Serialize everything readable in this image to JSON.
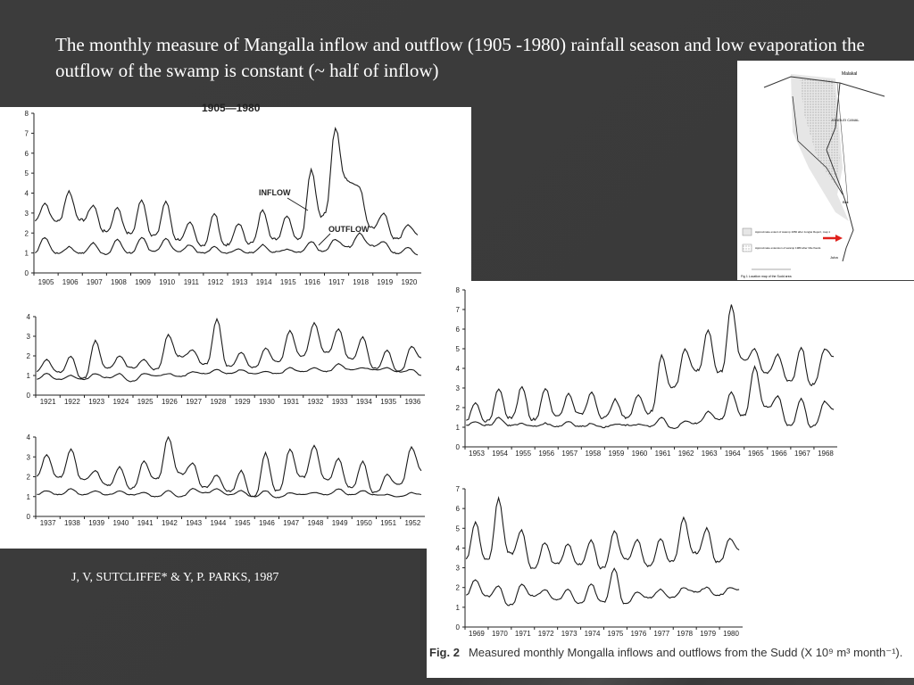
{
  "slide": {
    "title": "The monthly measure of Mangalla inflow and outflow (1905 -1980) rainfall season and low evaporation the outflow of the swamp is constant (~ half of inflow)",
    "credit": "J, V, SUTCLIFFE* & Y, P. PARKS, 1987",
    "caption_fig": "Fig. 2",
    "caption_text": "Measured monthly Mongalla inflows and outflows from the Sudd (X 10⁹ m³ month⁻¹).",
    "top_partial_label": "1905—1980"
  },
  "map": {
    "labels": [
      "Malakal",
      "JONGLEI CANAL",
      "Bor",
      "Juba",
      "Fig 1 Location map of the Sudd area"
    ],
    "legend": [
      "Approximate extent of swamp 1950 after Jonglei Report, map 1",
      "Approximate extension of swamp 1980 after Nile floods"
    ],
    "arrow_color": "#e0201b"
  },
  "chart_data": [
    {
      "type": "line",
      "years": [
        "1905",
        "1906",
        "1907",
        "1908",
        "1909",
        "1910",
        "1911",
        "1912",
        "1913",
        "1914",
        "1915",
        "1916",
        "1917",
        "1918",
        "1919",
        "1920"
      ],
      "ylim": [
        0,
        8
      ],
      "yticks": [
        "0",
        "1",
        "2",
        "3",
        "4",
        "5",
        "6",
        "7",
        "8"
      ],
      "annotations": [
        "INFLOW",
        "OUTFLOW"
      ],
      "series": [
        {
          "name": "INFLOW",
          "values_peak_trough": [
            [
              3.5,
              2.6
            ],
            [
              4.1,
              2.7
            ],
            [
              3.4,
              2.1
            ],
            [
              3.3,
              2.0
            ],
            [
              3.7,
              1.9
            ],
            [
              3.6,
              1.7
            ],
            [
              2.5,
              1.4
            ],
            [
              3.0,
              1.4
            ],
            [
              2.5,
              1.5
            ],
            [
              3.2,
              1.7
            ],
            [
              2.9,
              1.7
            ],
            [
              5.2,
              2.8
            ],
            [
              7.3,
              4.8
            ],
            [
              4.3,
              2.3
            ],
            [
              3.0,
              1.7
            ],
            [
              2.4,
              1.9
            ]
          ]
        },
        {
          "name": "OUTFLOW",
          "values_peak_trough": [
            [
              1.8,
              1.0
            ],
            [
              1.3,
              1.0
            ],
            [
              1.5,
              0.95
            ],
            [
              1.7,
              1.0
            ],
            [
              1.8,
              1.1
            ],
            [
              1.7,
              1.1
            ],
            [
              1.4,
              1.0
            ],
            [
              1.3,
              1.0
            ],
            [
              1.2,
              1.0
            ],
            [
              1.4,
              1.05
            ],
            [
              1.2,
              1.05
            ],
            [
              1.6,
              1.1
            ],
            [
              1.7,
              1.3
            ],
            [
              2.0,
              1.4
            ],
            [
              1.6,
              1.0
            ],
            [
              1.3,
              0.9
            ]
          ]
        }
      ]
    },
    {
      "type": "line",
      "years": [
        "1921",
        "1922",
        "1923",
        "1924",
        "1925",
        "1926",
        "1927",
        "1928",
        "1929",
        "1930",
        "1931",
        "1932",
        "1933",
        "1934",
        "1935",
        "1936"
      ],
      "ylim": [
        0,
        4
      ],
      "yticks": [
        "0",
        "1",
        "2",
        "3",
        "4"
      ],
      "series": [
        {
          "values_peak_trough": [
            [
              1.8,
              1.2
            ],
            [
              2.0,
              0.85
            ],
            [
              2.8,
              1.4
            ],
            [
              2.0,
              1.4
            ],
            [
              1.8,
              1.3
            ],
            [
              3.1,
              2.0
            ],
            [
              2.3,
              1.6
            ],
            [
              3.9,
              1.5
            ],
            [
              2.2,
              1.4
            ],
            [
              2.4,
              1.7
            ],
            [
              3.3,
              2.0
            ],
            [
              3.7,
              2.2
            ],
            [
              3.4,
              1.9
            ],
            [
              3.0,
              1.4
            ],
            [
              2.3,
              1.2
            ],
            [
              2.5,
              1.9
            ]
          ]
        },
        {
          "values_peak_trough": [
            [
              1.1,
              0.8
            ],
            [
              1.0,
              0.8
            ],
            [
              1.1,
              0.9
            ],
            [
              1.1,
              0.7
            ],
            [
              1.1,
              1.0
            ],
            [
              1.1,
              0.95
            ],
            [
              1.2,
              1.1
            ],
            [
              1.3,
              1.1
            ],
            [
              1.3,
              1.1
            ],
            [
              1.2,
              1.1
            ],
            [
              1.4,
              1.2
            ],
            [
              1.4,
              1.2
            ],
            [
              1.6,
              1.3
            ],
            [
              1.4,
              1.3
            ],
            [
              1.4,
              1.2
            ],
            [
              1.3,
              1.0
            ]
          ]
        }
      ]
    },
    {
      "type": "line",
      "years": [
        "1937",
        "1938",
        "1939",
        "1940",
        "1941",
        "1942",
        "1943",
        "1944",
        "1945",
        "1946",
        "1947",
        "1948",
        "1949",
        "1950",
        "1951",
        "1952"
      ],
      "ylim": [
        0,
        4
      ],
      "yticks": [
        "0",
        "1",
        "2",
        "3",
        "4"
      ],
      "series": [
        {
          "values_peak_trough": [
            [
              3.1,
              2.0
            ],
            [
              3.4,
              1.9
            ],
            [
              2.3,
              1.6
            ],
            [
              2.5,
              1.4
            ],
            [
              2.8,
              1.9
            ],
            [
              4.0,
              2.2
            ],
            [
              2.7,
              1.5
            ],
            [
              2.1,
              1.3
            ],
            [
              2.3,
              1.0
            ],
            [
              3.2,
              1.3
            ],
            [
              3.4,
              2.0
            ],
            [
              3.6,
              1.9
            ],
            [
              2.9,
              1.5
            ],
            [
              2.8,
              1.2
            ],
            [
              2.1,
              1.6
            ],
            [
              3.5,
              2.3
            ]
          ]
        },
        {
          "values_peak_trough": [
            [
              1.3,
              1.1
            ],
            [
              1.4,
              1.1
            ],
            [
              1.3,
              1.1
            ],
            [
              1.3,
              1.1
            ],
            [
              1.2,
              1.0
            ],
            [
              1.3,
              1.0
            ],
            [
              1.4,
              1.2
            ],
            [
              1.4,
              1.1
            ],
            [
              1.3,
              1.0
            ],
            [
              1.3,
              0.95
            ],
            [
              1.2,
              1.1
            ],
            [
              1.2,
              1.1
            ],
            [
              1.4,
              1.1
            ],
            [
              1.3,
              1.1
            ],
            [
              1.1,
              1.0
            ],
            [
              1.2,
              1.1
            ]
          ]
        }
      ]
    },
    {
      "type": "line",
      "years": [
        "1953",
        "1954",
        "1955",
        "1956",
        "1957",
        "1958",
        "1959",
        "1960",
        "1961",
        "1962",
        "1963",
        "1964",
        "1965",
        "1966",
        "1967",
        "1968"
      ],
      "ylim": [
        0,
        8
      ],
      "yticks": [
        "0",
        "1",
        "2",
        "3",
        "4",
        "5",
        "6",
        "7",
        "8"
      ],
      "series": [
        {
          "values_peak_trough": [
            [
              2.3,
              1.3
            ],
            [
              3.0,
              1.5
            ],
            [
              3.1,
              1.4
            ],
            [
              3.0,
              1.6
            ],
            [
              2.7,
              1.7
            ],
            [
              2.8,
              1.5
            ],
            [
              2.4,
              1.5
            ],
            [
              2.7,
              1.7
            ],
            [
              4.7,
              3.0
            ],
            [
              5.0,
              3.9
            ],
            [
              6.0,
              3.8
            ],
            [
              7.2,
              4.5
            ],
            [
              5.0,
              3.8
            ],
            [
              4.7,
              3.4
            ],
            [
              5.1,
              3.1
            ],
            [
              5.0,
              4.6
            ]
          ]
        },
        {
          "values_peak_trough": [
            [
              1.3,
              1.1
            ],
            [
              1.5,
              1.1
            ],
            [
              1.2,
              1.05
            ],
            [
              1.2,
              1.05
            ],
            [
              1.3,
              1.05
            ],
            [
              1.2,
              1.0
            ],
            [
              1.15,
              1.1
            ],
            [
              1.15,
              1.05
            ],
            [
              1.5,
              0.95
            ],
            [
              1.3,
              1.2
            ],
            [
              1.8,
              1.4
            ],
            [
              2.8,
              1.6
            ],
            [
              4.1,
              2.1
            ],
            [
              2.6,
              1.1
            ],
            [
              2.5,
              1.0
            ],
            [
              2.3,
              1.9
            ]
          ]
        }
      ]
    },
    {
      "type": "line",
      "years": [
        "1969",
        "1970",
        "1971",
        "1972",
        "1973",
        "1974",
        "1975",
        "1976",
        "1977",
        "1978",
        "1979",
        "1980"
      ],
      "ylim": [
        0,
        7
      ],
      "yticks": [
        "0",
        "1",
        "2",
        "3",
        "4",
        "5",
        "6",
        "7"
      ],
      "series": [
        {
          "values_peak_trough": [
            [
              5.3,
              3.4
            ],
            [
              6.5,
              3.8
            ],
            [
              4.9,
              3.0
            ],
            [
              4.3,
              3.2
            ],
            [
              4.2,
              3.2
            ],
            [
              4.4,
              3.0
            ],
            [
              4.9,
              3.5
            ],
            [
              4.4,
              3.1
            ],
            [
              4.5,
              3.3
            ],
            [
              5.5,
              3.8
            ],
            [
              5.0,
              3.3
            ],
            [
              4.5,
              3.9
            ]
          ]
        },
        {
          "values_peak_trough": [
            [
              2.4,
              1.6
            ],
            [
              2.1,
              1.1
            ],
            [
              2.2,
              1.6
            ],
            [
              1.9,
              1.4
            ],
            [
              1.9,
              1.2
            ],
            [
              2.2,
              1.3
            ],
            [
              3.0,
              1.2
            ],
            [
              1.8,
              1.5
            ],
            [
              1.9,
              1.5
            ],
            [
              2.0,
              1.8
            ],
            [
              2.0,
              1.6
            ],
            [
              2.0,
              1.9
            ]
          ]
        }
      ]
    }
  ]
}
